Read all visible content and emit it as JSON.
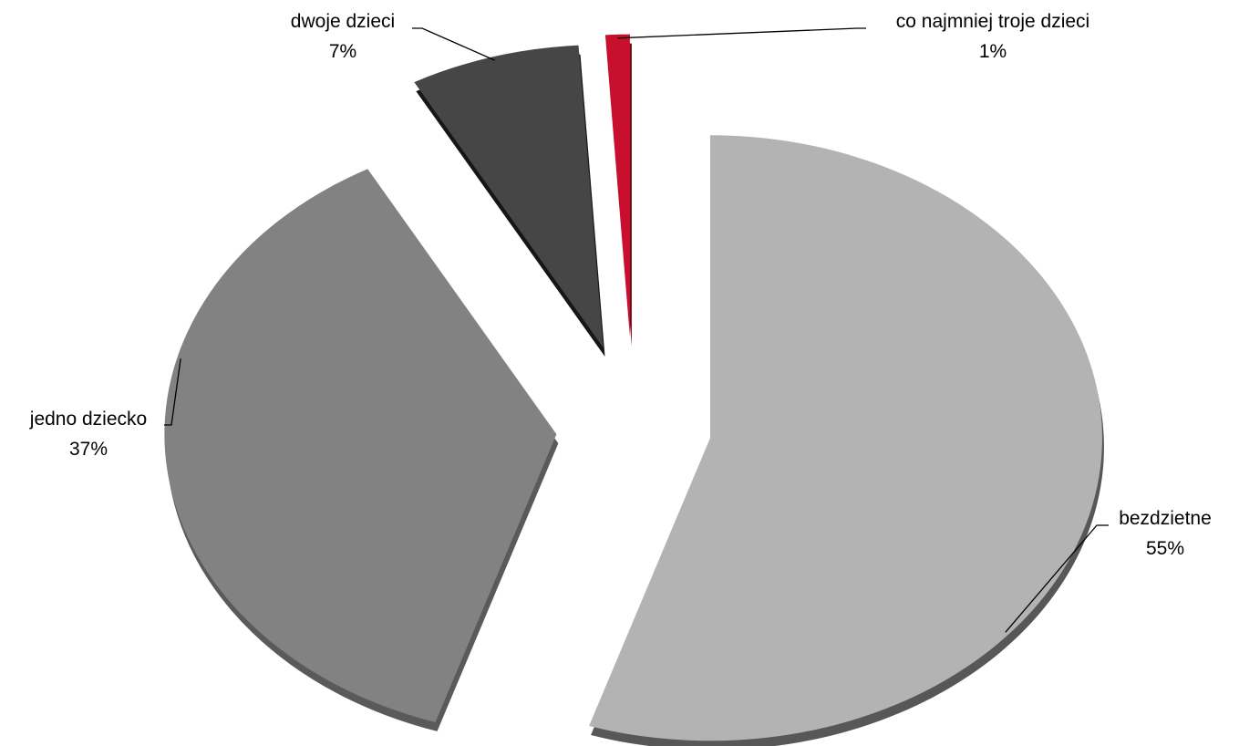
{
  "chart_data": {
    "type": "pie",
    "style": "3d-exploded",
    "slices": [
      {
        "label": "bezdzietne",
        "value": 55,
        "value_label": "55%",
        "color": "#b3b3b3",
        "side_color": "#575757"
      },
      {
        "label": "jedno dziecko",
        "value": 37,
        "value_label": "37%",
        "color": "#828282",
        "side_color": "#5a5a5a"
      },
      {
        "label": "dwoje dzieci",
        "value": 7,
        "value_label": "7%",
        "color": "#464646",
        "side_color": "#161616"
      },
      {
        "label": "co najmniej troje dzieci",
        "value": 1,
        "value_label": "1%",
        "color": "#c8102e",
        "side_color": "#6e0a18"
      }
    ],
    "legend": "none",
    "data_labels": "outside-with-leader-lines"
  }
}
